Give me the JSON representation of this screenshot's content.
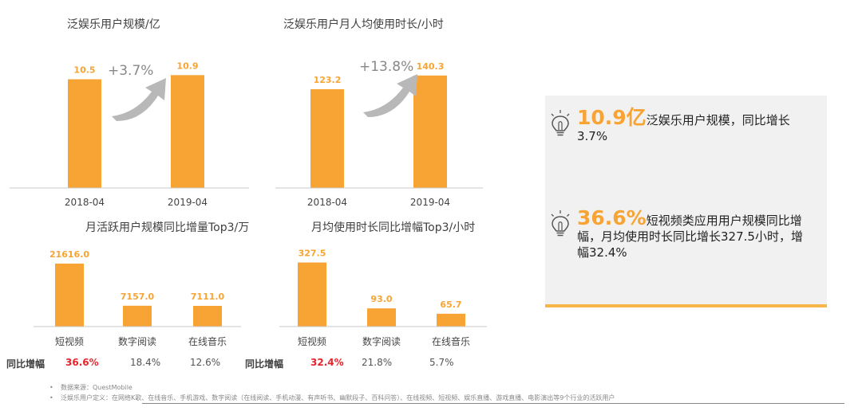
{
  "chart_data": [
    {
      "type": "bar",
      "title": "泛娱乐用户规模/亿",
      "categories": [
        "2018-04",
        "2019-04"
      ],
      "values": [
        10.5,
        10.9
      ],
      "value_labels": [
        "10.5",
        "10.9"
      ],
      "annotation": "+3.7%",
      "ylim": [
        0,
        12
      ]
    },
    {
      "type": "bar",
      "title": "泛娱乐用户月人均使用时长/小时",
      "categories": [
        "2018-04",
        "2019-04"
      ],
      "values": [
        123.2,
        140.3
      ],
      "value_labels": [
        "123.2",
        "140.3"
      ],
      "annotation": "+13.8%",
      "ylim": [
        0,
        155
      ]
    },
    {
      "type": "bar",
      "title": "月活跃用户规模同比增量Top3/万",
      "categories": [
        "短视频",
        "数字阅读",
        "在线音乐"
      ],
      "values": [
        21616.0,
        7157.0,
        7111.0
      ],
      "value_labels": [
        "21616.0",
        "7157.0",
        "7111.0"
      ],
      "growth_title": "同比增幅",
      "growth": [
        "36.6%",
        "18.4%",
        "12.6%"
      ],
      "ylim": [
        0,
        23500
      ]
    },
    {
      "type": "bar",
      "title": "月均使用时长同比增幅Top3/小时",
      "categories": [
        "短视频",
        "数字阅读",
        "在线音乐"
      ],
      "values": [
        327.5,
        93.0,
        65.7
      ],
      "value_labels": [
        "327.5",
        "93.0",
        "65.7"
      ],
      "growth_title": "同比增幅",
      "growth": [
        "32.4%",
        "21.8%",
        "5.7%"
      ],
      "ylim": [
        0,
        350
      ]
    }
  ],
  "colors": {
    "bar": "#f7a434",
    "highlight": "#e8232b",
    "accent_line": "#f8b54a",
    "arrow": "#b8b8b8"
  },
  "highlights": [
    {
      "icon": "lightbulb-icon",
      "big": "10.9亿",
      "text": "泛娱乐用户规模，同比增长3.7%"
    },
    {
      "icon": "lightbulb-icon",
      "big": "36.6%",
      "text": "短视频类应用用户规模同比增幅，月均使用时长同比增长327.5小时，增幅32.4%"
    }
  ],
  "footnotes": [
    "数据来源：QuestMobile",
    "泛娱乐用户定义：在网络K歌、在线音乐、手机游戏、数字阅读（在线阅读、手机动漫、有声听书、幽默段子、百科问答）、在线视频、短视频、娱乐直播、游戏直播、电影演出等9个行业的活跃用户"
  ]
}
